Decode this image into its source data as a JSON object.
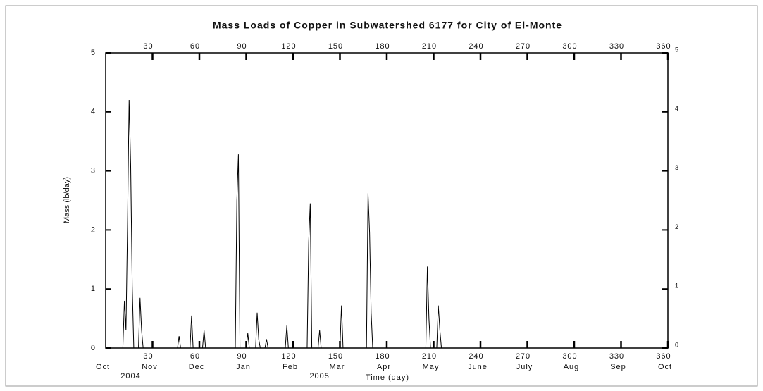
{
  "chart_data": {
    "type": "line",
    "title": "Mass Loads of Copper in Subwatershed 6177 for City of El-Monte",
    "ylabel": "Mass (lb/day)",
    "xlabel": "Time (day)",
    "color": "#000000",
    "x": [
      0,
      11,
      12,
      13,
      14,
      15,
      16,
      17,
      18,
      21,
      22,
      23,
      24,
      46,
      47,
      48,
      54,
      55,
      56,
      62,
      63,
      64,
      83,
      84,
      85,
      86,
      90,
      91,
      92,
      96,
      97,
      98,
      99,
      102,
      103,
      104,
      115,
      116,
      117,
      129,
      130,
      131,
      132,
      136,
      137,
      138,
      150,
      151,
      152,
      167,
      168,
      169,
      170,
      171,
      205,
      206,
      207,
      208,
      212,
      213,
      214,
      215,
      360
    ],
    "values": [
      0,
      0,
      0.8,
      0.3,
      2.1,
      4.2,
      3.1,
      1.05,
      0,
      0,
      0.85,
      0.3,
      0,
      0,
      0.2,
      0,
      0,
      0.55,
      0,
      0,
      0.3,
      0,
      0,
      2.5,
      3.28,
      0,
      0,
      0.25,
      0,
      0,
      0.6,
      0.15,
      0,
      0,
      0.15,
      0,
      0,
      0.38,
      0,
      0,
      1.8,
      2.45,
      0,
      0,
      0.3,
      0,
      0,
      0.72,
      0,
      0,
      2.62,
      1.95,
      0.6,
      0,
      0,
      1.38,
      0.5,
      0,
      0,
      0.72,
      0.3,
      0,
      0
    ],
    "xlim": [
      0,
      360
    ],
    "xticks": [
      30,
      60,
      90,
      120,
      150,
      180,
      210,
      240,
      270,
      300,
      330,
      360
    ],
    "ylim": [
      0,
      5
    ],
    "yticks": [
      0,
      1,
      2,
      3,
      4,
      5
    ],
    "y2lim": [
      0,
      5
    ],
    "y2ticks": [
      0,
      1,
      2,
      3,
      4,
      5
    ],
    "month_ticks": [
      {
        "value": 0,
        "label": "Oct"
      },
      {
        "value": 30,
        "label": "Nov"
      },
      {
        "value": 60,
        "label": "Dec"
      },
      {
        "value": 90,
        "label": "Jan"
      },
      {
        "value": 120,
        "label": "Feb"
      },
      {
        "value": 150,
        "label": "Mar"
      },
      {
        "value": 180,
        "label": "Apr"
      },
      {
        "value": 210,
        "label": "May"
      },
      {
        "value": 240,
        "label": "June"
      },
      {
        "value": 270,
        "label": "July"
      },
      {
        "value": 300,
        "label": "Aug"
      },
      {
        "value": 330,
        "label": "Sep"
      },
      {
        "value": 360,
        "label": "Oct"
      }
    ],
    "year_labels": [
      {
        "value": 16,
        "label": "2004"
      },
      {
        "value": 137,
        "label": "2005"
      }
    ]
  }
}
